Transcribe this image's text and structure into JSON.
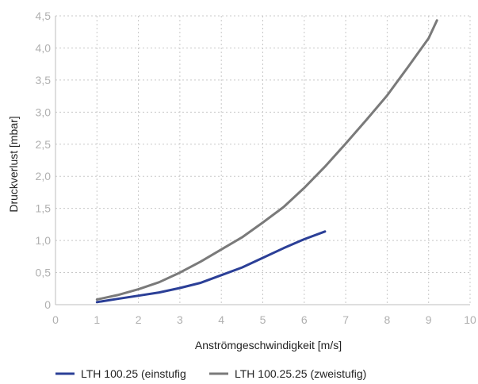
{
  "chart_data": {
    "type": "line",
    "xlabel": "Anströmgeschwindigkeit [m/s]",
    "ylabel": "Druckverlust [mbar]",
    "xlim": [
      0,
      10
    ],
    "ylim": [
      0,
      4.5
    ],
    "grid": true,
    "legend_position": "bottom",
    "x_ticks": [
      "0",
      "1",
      "2",
      "3",
      "4",
      "5",
      "6",
      "7",
      "8",
      "9",
      "10"
    ],
    "y_ticks": [
      "0",
      "0,5",
      "1,0",
      "1,5",
      "2,0",
      "2,5",
      "3,0",
      "3,5",
      "4,0",
      "4,5"
    ],
    "series": [
      {
        "name": "LTH 100.25 (einstufig",
        "color": "#2b3f97",
        "x": [
          1.0,
          1.5,
          2.0,
          2.5,
          3.0,
          3.5,
          4.0,
          4.5,
          5.0,
          5.5,
          6.0,
          6.5
        ],
        "y": [
          0.04,
          0.09,
          0.14,
          0.19,
          0.26,
          0.34,
          0.46,
          0.58,
          0.73,
          0.88,
          1.02,
          1.14
        ]
      },
      {
        "name": "LTH 100.25.25 (zweistufig)",
        "color": "#7a7a7a",
        "x": [
          1.0,
          1.5,
          2.0,
          2.5,
          3.0,
          3.5,
          4.0,
          4.5,
          5.0,
          5.5,
          6.0,
          6.5,
          7.0,
          7.5,
          8.0,
          8.5,
          9.0,
          9.2
        ],
        "y": [
          0.08,
          0.15,
          0.24,
          0.35,
          0.5,
          0.67,
          0.86,
          1.05,
          1.28,
          1.52,
          1.82,
          2.15,
          2.51,
          2.88,
          3.26,
          3.7,
          4.15,
          4.43
        ]
      }
    ]
  }
}
